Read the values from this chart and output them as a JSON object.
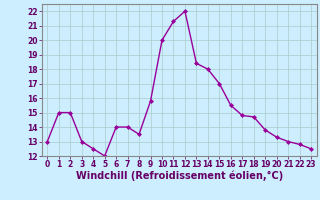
{
  "x": [
    0,
    1,
    2,
    3,
    4,
    5,
    6,
    7,
    8,
    9,
    10,
    11,
    12,
    13,
    14,
    15,
    16,
    17,
    18,
    19,
    20,
    21,
    22,
    23
  ],
  "y": [
    13,
    15,
    15,
    13,
    12.5,
    12,
    14,
    14,
    13.5,
    15.8,
    20,
    21.3,
    22,
    18.4,
    18,
    17,
    15.5,
    14.8,
    14.7,
    13.8,
    13.3,
    13,
    12.8,
    12.5
  ],
  "line_color": "#990099",
  "marker": "D",
  "marker_size": 2.0,
  "line_width": 1.0,
  "xlabel": "Windchill (Refroidissement éolien,°C)",
  "xlabel_fontsize": 7,
  "bg_color": "#cceeff",
  "grid_color": "#aacccc",
  "ylim": [
    12,
    22.5
  ],
  "xlim": [
    -0.5,
    23.5
  ],
  "yticks": [
    12,
    13,
    14,
    15,
    16,
    17,
    18,
    19,
    20,
    21,
    22
  ],
  "xticks": [
    0,
    1,
    2,
    3,
    4,
    5,
    6,
    7,
    8,
    9,
    10,
    11,
    12,
    13,
    14,
    15,
    16,
    17,
    18,
    19,
    20,
    21,
    22,
    23
  ],
  "tick_fontsize": 5.5,
  "spine_color": "#888888"
}
